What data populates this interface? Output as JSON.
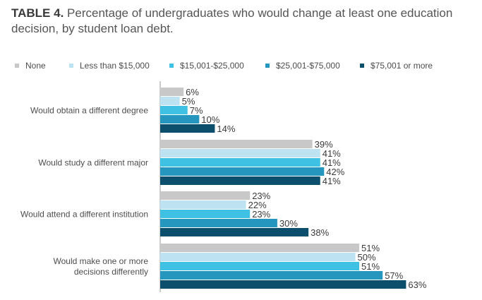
{
  "title": {
    "lead": "TABLE 4.",
    "text": " Percentage of undergraduates who would change at least one education decision, by student loan debt."
  },
  "chart_data": {
    "type": "bar",
    "orientation": "horizontal",
    "categories": [
      [
        "Would obtain a different degree"
      ],
      [
        "Would study a different major"
      ],
      [
        "Would attend a different institution"
      ],
      [
        "Would make one or more",
        "decisions differently"
      ]
    ],
    "series": [
      {
        "name": "None",
        "color": "#c8c8c8",
        "values": [
          6,
          39,
          23,
          51
        ]
      },
      {
        "name": "Less than $15,000",
        "color": "#bde3f3",
        "values": [
          5,
          41,
          22,
          50
        ]
      },
      {
        "name": "$15,001-$25,000",
        "color": "#3fc1e3",
        "values": [
          7,
          41,
          23,
          51
        ]
      },
      {
        "name": "$25,001-$75,000",
        "color": "#2596be",
        "values": [
          10,
          42,
          30,
          57
        ]
      },
      {
        "name": "$75,001 or more",
        "color": "#0b4f6c",
        "values": [
          14,
          41,
          38,
          63
        ]
      }
    ],
    "value_suffix": "%",
    "xlim": [
      0,
      63
    ],
    "legend_position": "top",
    "grid": false
  }
}
